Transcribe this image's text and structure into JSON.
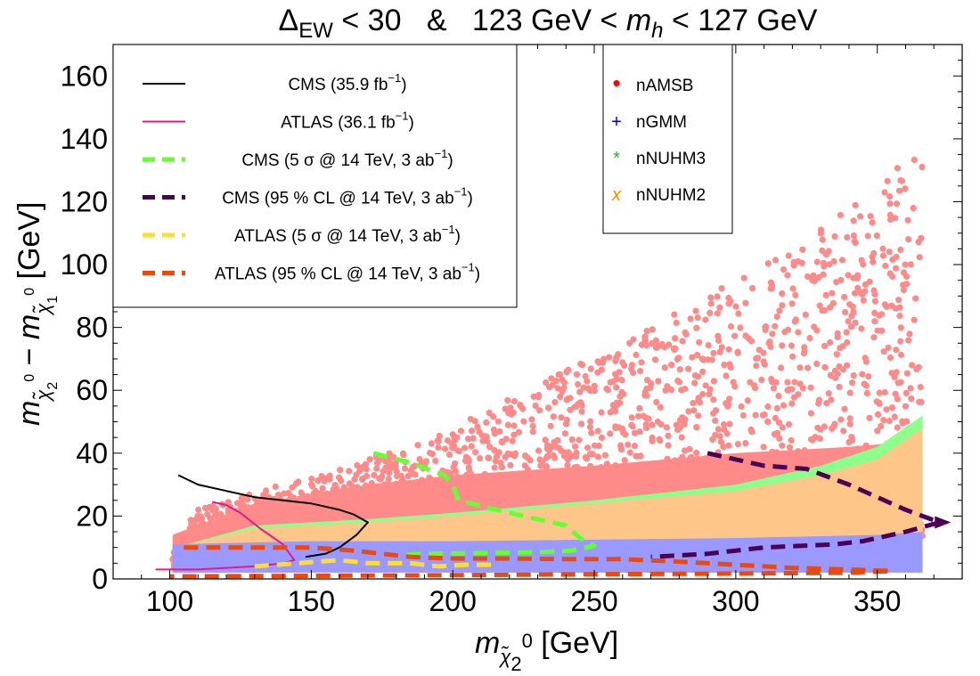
{
  "title": {
    "delta": "Δ",
    "delta_sub": "EW",
    "mid": " < 30   &   123 GeV < ",
    "mh": "m",
    "mh_sub": "h",
    "tail": " < 127 GeV"
  },
  "axes": {
    "x_var": "m",
    "x_sub": "χ̃",
    "x_sub_index": "2",
    "x_sup": "0",
    "x_unit": " [GeV]",
    "y_var1": "m",
    "y_sub1": "χ̃",
    "y_sub1_index": "2",
    "y_sup1": "0",
    "y_minus": " − ",
    "y_var2": "m",
    "y_sub2": "χ̃",
    "y_sub2_index": "1",
    "y_sup2": "0",
    "y_unit": " [GeV]"
  },
  "colors": {
    "nAMSB": "#ff8a8a",
    "nAMSB_marker": "#ff0000",
    "nGMM": "#9999ff",
    "nGMM_marker": "#0000cc",
    "nNUHM3": "#8dff8d",
    "nNUHM3_marker": "#22bb22",
    "nNUHM2": "#ffc68a",
    "nNUHM2_marker": "#ff8c00",
    "cms_36": "#000000",
    "atlas_36": "#e8178a",
    "cms_5sigma": "#66ff33",
    "cms_95": "#4b0055",
    "atlas_5sigma": "#ffdd33",
    "atlas_95": "#e84a10"
  },
  "chart_data": {
    "type": "scatter",
    "xlim": [
      80,
      380
    ],
    "ylim": [
      0,
      170
    ],
    "x_ticks": [
      "100",
      "150",
      "200",
      "250",
      "300",
      "350"
    ],
    "y_ticks": [
      "0",
      "20",
      "40",
      "60",
      "80",
      "100",
      "120",
      "140",
      "160"
    ],
    "x_tick_values": [
      100,
      150,
      200,
      250,
      300,
      350
    ],
    "y_tick_values": [
      0,
      20,
      40,
      60,
      80,
      100,
      120,
      140,
      160
    ],
    "grid": false,
    "legends": [
      {
        "placement": "top-left",
        "entries": [
          {
            "id": "cms_36",
            "prefix": "CMS (35.9 fb",
            "sup": "−1",
            "suffix": ")",
            "style": "solid"
          },
          {
            "id": "atlas_36",
            "prefix": "ATLAS (36.1 fb",
            "sup": "−1",
            "suffix": ")",
            "style": "solid"
          },
          {
            "id": "cms_5sigma",
            "prefix": "CMS (5 σ @ 14 TeV, 3 ab",
            "sup": "−1",
            "suffix": ")",
            "style": "dashed"
          },
          {
            "id": "cms_95",
            "prefix": "CMS (95 % CL @ 14 TeV, 3 ab",
            "sup": "−1",
            "suffix": ")",
            "style": "dashed"
          },
          {
            "id": "atlas_5sigma",
            "prefix": "ATLAS (5 σ @ 14 TeV, 3 ab",
            "sup": "−1",
            "suffix": ")",
            "style": "dashed"
          },
          {
            "id": "atlas_95",
            "prefix": "ATLAS (95 % CL @ 14 TeV, 3 ab",
            "sup": "−1",
            "suffix": ")",
            "style": "dashed"
          }
        ]
      },
      {
        "placement": "top-center-right",
        "entries": [
          {
            "id": "nAMSB",
            "label": "nAMSB",
            "marker": "•"
          },
          {
            "id": "nGMM",
            "label": "nGMM",
            "marker": "+"
          },
          {
            "id": "nNUHM3",
            "label": "nNUHM3",
            "marker": "*"
          },
          {
            "id": "nNUHM2",
            "label": "nNUHM2",
            "marker": "x"
          }
        ]
      }
    ],
    "regions": [
      {
        "name": "nAMSB",
        "x_range": [
          101,
          366
        ],
        "y_lower_bound": 3,
        "y_upper": [
          [
            101,
            12
          ],
          [
            110,
            22
          ],
          [
            130,
            28
          ],
          [
            150,
            32
          ],
          [
            170,
            38
          ],
          [
            200,
            48
          ],
          [
            230,
            62
          ],
          [
            260,
            75
          ],
          [
            290,
            90
          ],
          [
            320,
            105
          ],
          [
            340,
            118
          ],
          [
            355,
            130
          ],
          [
            366,
            143
          ]
        ]
      },
      {
        "name": "nNUHM3",
        "x_range": [
          102,
          366
        ],
        "upper": [
          [
            102,
            10
          ],
          [
            130,
            17
          ],
          [
            170,
            19
          ],
          [
            200,
            21
          ],
          [
            250,
            25
          ],
          [
            300,
            30
          ],
          [
            330,
            36
          ],
          [
            350,
            42
          ],
          [
            366,
            52
          ]
        ],
        "lower": [
          [
            102,
            3
          ],
          [
            366,
            3
          ]
        ]
      },
      {
        "name": "nNUHM2",
        "x_range": [
          102,
          366
        ],
        "upper": [
          [
            102,
            10
          ],
          [
            130,
            16
          ],
          [
            170,
            18
          ],
          [
            200,
            20
          ],
          [
            250,
            24
          ],
          [
            300,
            28
          ],
          [
            330,
            33
          ],
          [
            350,
            38
          ],
          [
            366,
            48
          ]
        ],
        "lower": [
          [
            102,
            10
          ],
          [
            366,
            13
          ]
        ]
      },
      {
        "name": "nGMM",
        "x_range": [
          101,
          366
        ],
        "upper": [
          [
            101,
            11
          ],
          [
            150,
            12
          ],
          [
            200,
            12
          ],
          [
            250,
            12.5
          ],
          [
            300,
            13
          ],
          [
            350,
            14
          ],
          [
            366,
            15
          ]
        ],
        "lower": [
          [
            101,
            2
          ],
          [
            366,
            2
          ]
        ]
      }
    ],
    "contours": [
      {
        "id": "cms_36",
        "points": [
          [
            103,
            33
          ],
          [
            110,
            30
          ],
          [
            120,
            28
          ],
          [
            130,
            26
          ],
          [
            140,
            25
          ],
          [
            150,
            24
          ],
          [
            160,
            22
          ],
          [
            165,
            20.5
          ],
          [
            168,
            19
          ],
          [
            170,
            18
          ],
          [
            166,
            14
          ],
          [
            160,
            10
          ],
          [
            155,
            8
          ],
          [
            148,
            7
          ]
        ]
      },
      {
        "id": "atlas_36",
        "points": [
          [
            95,
            3
          ],
          [
            110,
            3
          ],
          [
            120,
            3.5
          ],
          [
            130,
            4
          ],
          [
            140,
            5
          ],
          [
            144,
            6
          ],
          [
            140,
            11
          ],
          [
            132,
            16
          ],
          [
            125,
            21
          ],
          [
            120,
            23.5
          ],
          [
            115,
            24.5
          ]
        ]
      },
      {
        "id": "cms_5sigma",
        "points": [
          [
            172,
            40
          ],
          [
            185,
            37
          ],
          [
            197,
            33
          ],
          [
            200,
            30
          ],
          [
            202,
            25
          ],
          [
            220,
            21
          ],
          [
            240,
            17
          ],
          [
            245,
            13
          ],
          [
            250,
            10.5
          ],
          [
            242,
            9
          ],
          [
            230,
            8.5
          ],
          [
            190,
            8
          ],
          [
            180,
            7.5
          ]
        ]
      },
      {
        "id": "cms_95",
        "points": [
          [
            290,
            40
          ],
          [
            310,
            36
          ],
          [
            325,
            35
          ],
          [
            340,
            30
          ],
          [
            360,
            22
          ],
          [
            372,
            18
          ],
          [
            360,
            15
          ],
          [
            345,
            12
          ],
          [
            335,
            11
          ],
          [
            310,
            10
          ],
          [
            290,
            8
          ],
          [
            270,
            7
          ]
        ]
      },
      {
        "id": "atlas_5sigma",
        "points": [
          [
            130,
            4
          ],
          [
            145,
            5
          ],
          [
            160,
            6
          ],
          [
            170,
            5
          ],
          [
            185,
            5
          ],
          [
            195,
            4
          ],
          [
            205,
            4.5
          ],
          [
            215,
            4.5
          ]
        ]
      },
      {
        "id": "atlas_95",
        "points": [
          [
            105,
            10
          ],
          [
            130,
            10
          ],
          [
            150,
            10
          ],
          [
            165,
            9
          ],
          [
            175,
            8
          ],
          [
            185,
            7
          ],
          [
            200,
            6.5
          ],
          [
            220,
            6.5
          ],
          [
            240,
            6.3
          ],
          [
            260,
            6.3
          ],
          [
            280,
            5.5
          ],
          [
            300,
            4.5
          ],
          [
            320,
            3.5
          ],
          [
            340,
            3
          ],
          [
            355,
            2.5
          ],
          [
            340,
            2
          ],
          [
            300,
            1.7
          ],
          [
            250,
            1.5
          ],
          [
            200,
            1.2
          ],
          [
            150,
            1
          ],
          [
            100,
            0.8
          ]
        ]
      }
    ]
  }
}
